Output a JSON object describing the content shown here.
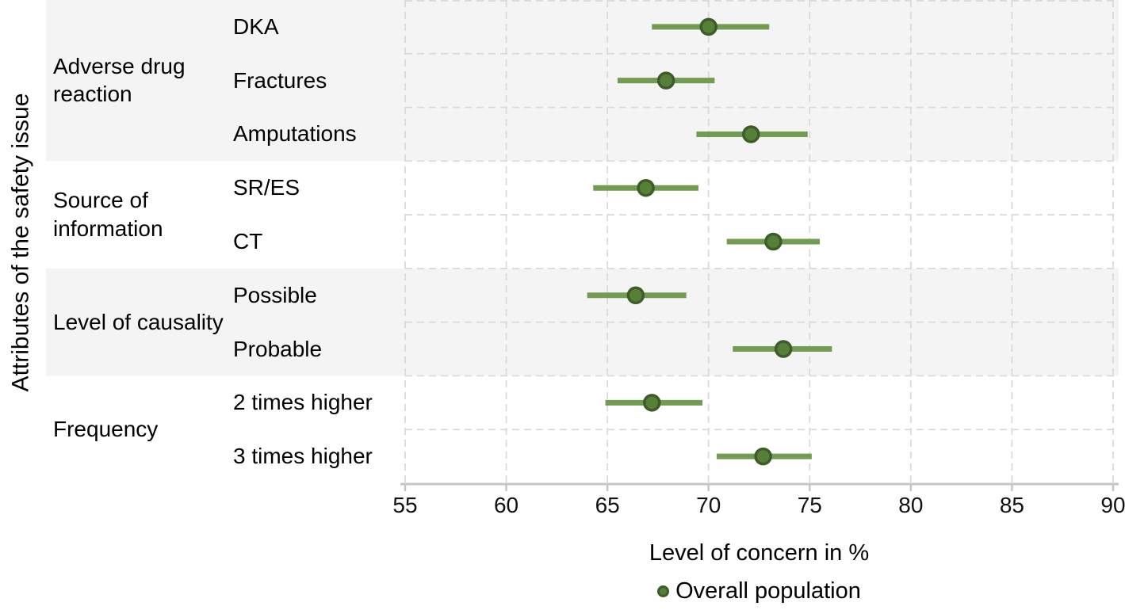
{
  "chart_data": {
    "type": "scatter",
    "subtype": "dot-and-interval (forest plot)",
    "title": "",
    "xlabel": "Level of concern in %",
    "ylabel": "Attributes of the safety issue",
    "xlim": [
      55,
      90
    ],
    "xticks": [
      55,
      60,
      65,
      70,
      75,
      80,
      85,
      90
    ],
    "grid": "dashed",
    "legend_position": "bottom",
    "legend": [
      {
        "label": "Overall population",
        "marker": "circle",
        "marker_color": "#568038"
      }
    ],
    "groups": [
      {
        "label": "Adverse drug reaction",
        "shaded": true,
        "items": [
          {
            "label": "DKA",
            "value": 70.0,
            "ci_low": 67.2,
            "ci_high": 73.0
          },
          {
            "label": "Fractures",
            "value": 67.9,
            "ci_low": 65.5,
            "ci_high": 70.3
          },
          {
            "label": "Amputations",
            "value": 72.1,
            "ci_low": 69.4,
            "ci_high": 74.9
          }
        ]
      },
      {
        "label": "Source of information",
        "shaded": false,
        "items": [
          {
            "label": "SR/ES",
            "value": 66.9,
            "ci_low": 64.3,
            "ci_high": 69.5
          },
          {
            "label": "CT",
            "value": 73.2,
            "ci_low": 70.9,
            "ci_high": 75.5
          }
        ]
      },
      {
        "label": "Level of causality",
        "shaded": true,
        "items": [
          {
            "label": "Possible",
            "value": 66.4,
            "ci_low": 64.0,
            "ci_high": 68.9
          },
          {
            "label": "Probable",
            "value": 73.7,
            "ci_low": 71.2,
            "ci_high": 76.1
          }
        ]
      },
      {
        "label": "Frequency",
        "shaded": false,
        "items": [
          {
            "label": "2 times higher",
            "value": 67.2,
            "ci_low": 64.9,
            "ci_high": 69.7
          },
          {
            "label": "3 times higher",
            "value": 72.7,
            "ci_low": 70.4,
            "ci_high": 75.1
          }
        ]
      }
    ],
    "colors": {
      "band_shaded": "#f4f4f4",
      "band_plain": "#ffffff",
      "gridline": "#d9d9d9",
      "axis": "#c6c6c6",
      "ci_line": "#729c52",
      "dot_fill": "#568038",
      "dot_stroke": "#3e5c28",
      "text": "#000000"
    }
  }
}
